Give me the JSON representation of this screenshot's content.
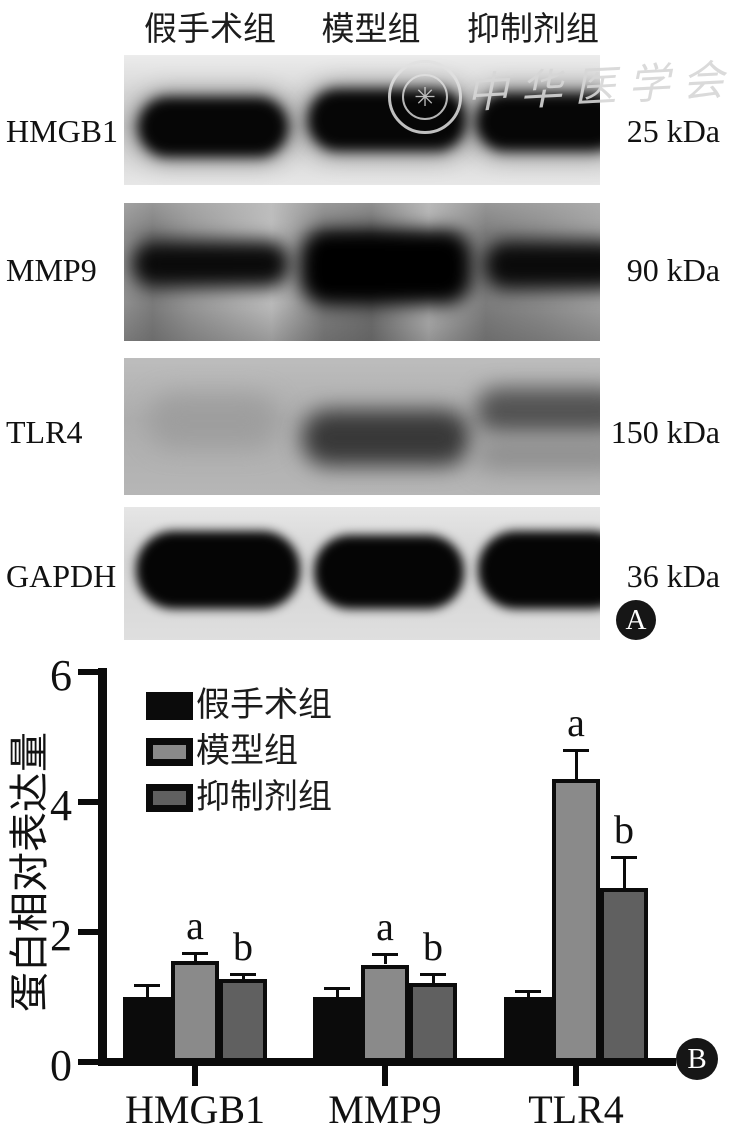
{
  "figure": {
    "panel_a_label": "A",
    "panel_b_label": "B",
    "watermark": {
      "text": "中华医学会",
      "seal_glyph": "✳"
    }
  },
  "panel_a": {
    "column_headers": [
      "假手术组",
      "模型组",
      "抑制剂组"
    ],
    "rows": [
      {
        "protein": "HMGB1",
        "kda": "25 kDa"
      },
      {
        "protein": "MMP9",
        "kda": "90 kDa"
      },
      {
        "protein": "TLR4",
        "kda": "150 kDa"
      },
      {
        "protein": "GAPDH",
        "kda": "36 kDa"
      }
    ]
  },
  "chart_data": {
    "type": "bar",
    "title": "",
    "xlabel": "",
    "ylabel": "蛋白相对表达量",
    "ylim": [
      0,
      6
    ],
    "yticks": [
      0,
      2,
      4,
      6
    ],
    "grid": false,
    "legend_position": "top-left",
    "bar_outline_color": "#0b0b0b",
    "categories": [
      "HMGB1",
      "MMP9",
      "TLR4"
    ],
    "series": [
      {
        "name": "假手术组",
        "color": "#0b0b0b",
        "values": [
          1.0,
          1.0,
          1.0
        ],
        "errors": [
          0.18,
          0.14,
          0.09
        ],
        "sig": ""
      },
      {
        "name": "模型组",
        "color": "#8a8a8a",
        "values": [
          1.55,
          1.5,
          4.35
        ],
        "errors": [
          0.13,
          0.16,
          0.45
        ],
        "sig": "a"
      },
      {
        "name": "抑制剂组",
        "color": "#606060",
        "values": [
          1.27,
          1.22,
          2.67
        ],
        "errors": [
          0.09,
          0.14,
          0.48
        ],
        "sig": "b"
      }
    ]
  }
}
